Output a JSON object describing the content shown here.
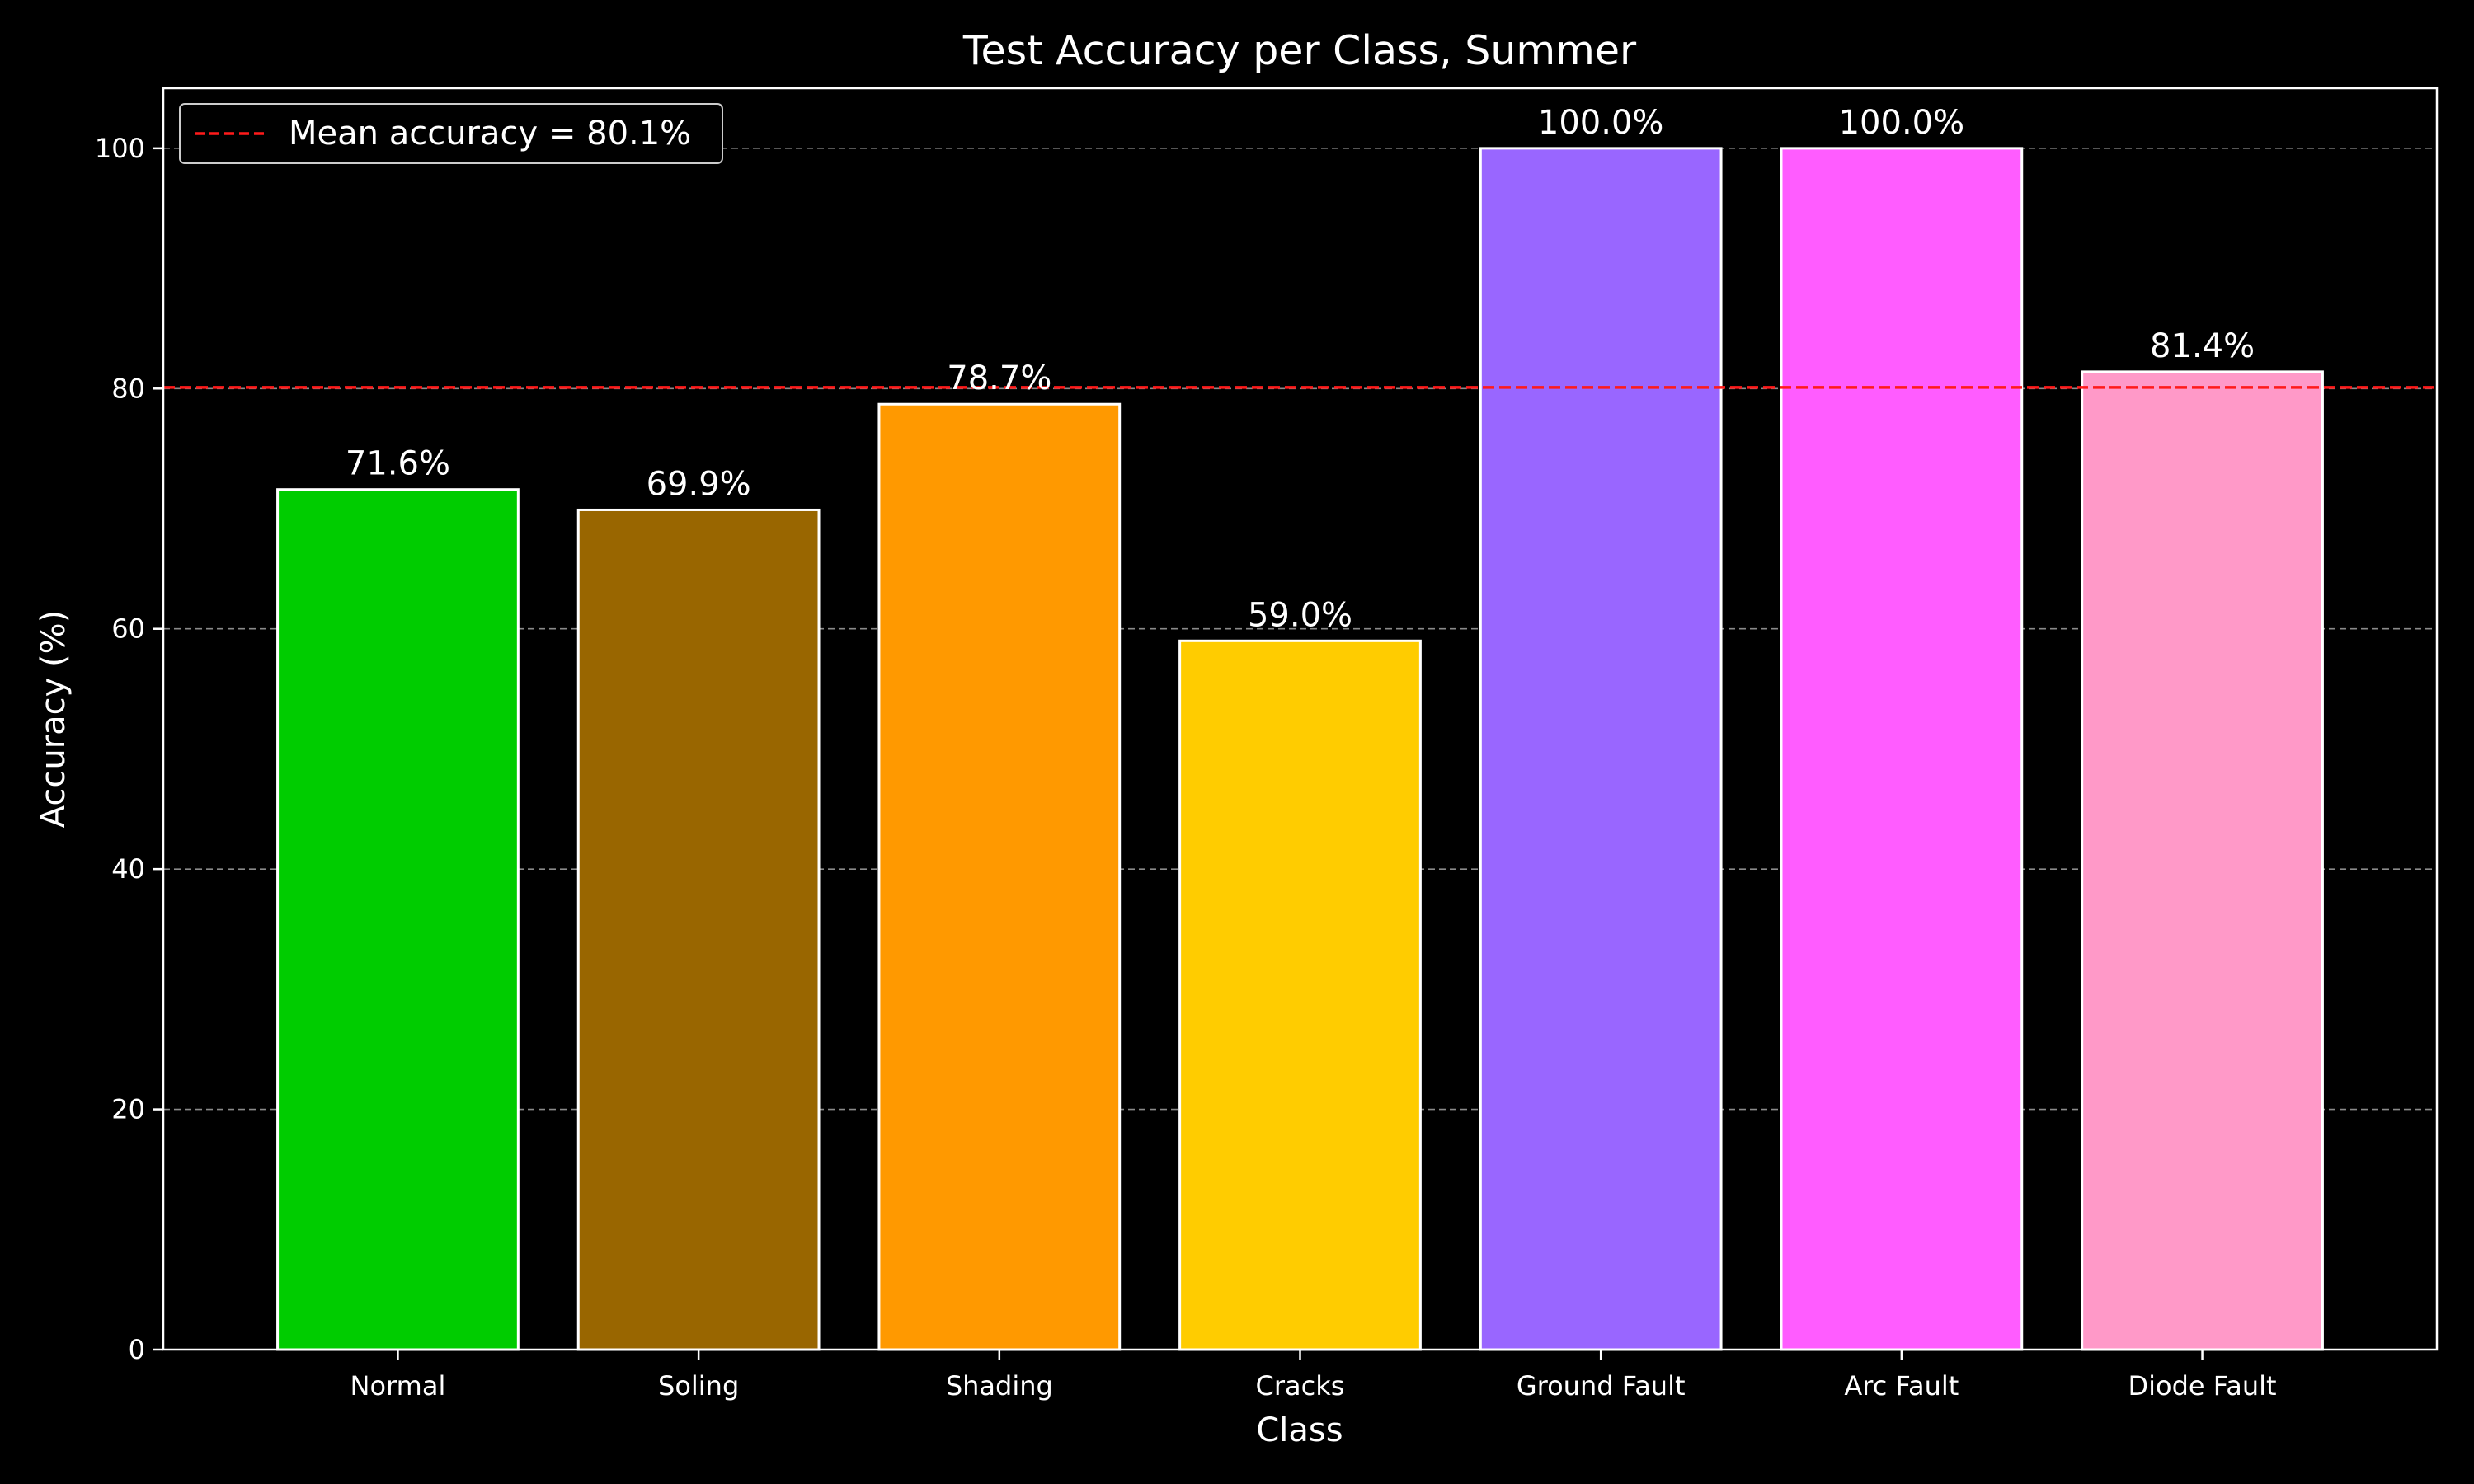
{
  "chart_data": {
    "type": "bar",
    "title": "Test Accuracy per Class, Summer",
    "xlabel": "Class",
    "ylabel": "Accuracy (%)",
    "categories": [
      "Normal",
      "Soling",
      "Shading",
      "Cracks",
      "Ground Fault",
      "Arc Fault",
      "Diode Fault"
    ],
    "values": [
      71.6,
      69.9,
      78.7,
      59.0,
      100.0,
      100.0,
      81.4
    ],
    "value_labels": [
      "71.6%",
      "69.9%",
      "78.7%",
      "59.0%",
      "100.0%",
      "100.0%",
      "81.4%"
    ],
    "colors": [
      "#00cc00",
      "#996600",
      "#ff9900",
      "#ffcc00",
      "#9966ff",
      "#ff5cff",
      "#ff99c8"
    ],
    "bar_edge_color": "#ffffff",
    "ylim": [
      0,
      105
    ],
    "yticks": [
      0,
      20,
      40,
      60,
      80,
      100
    ],
    "grid": "y-dashed",
    "mean_line": {
      "value": 80.1,
      "label": "Mean accuracy = 80.1%",
      "color": "#ff1a1a",
      "style": "dashed"
    },
    "legend_position": "top-left",
    "background": "#000000"
  }
}
